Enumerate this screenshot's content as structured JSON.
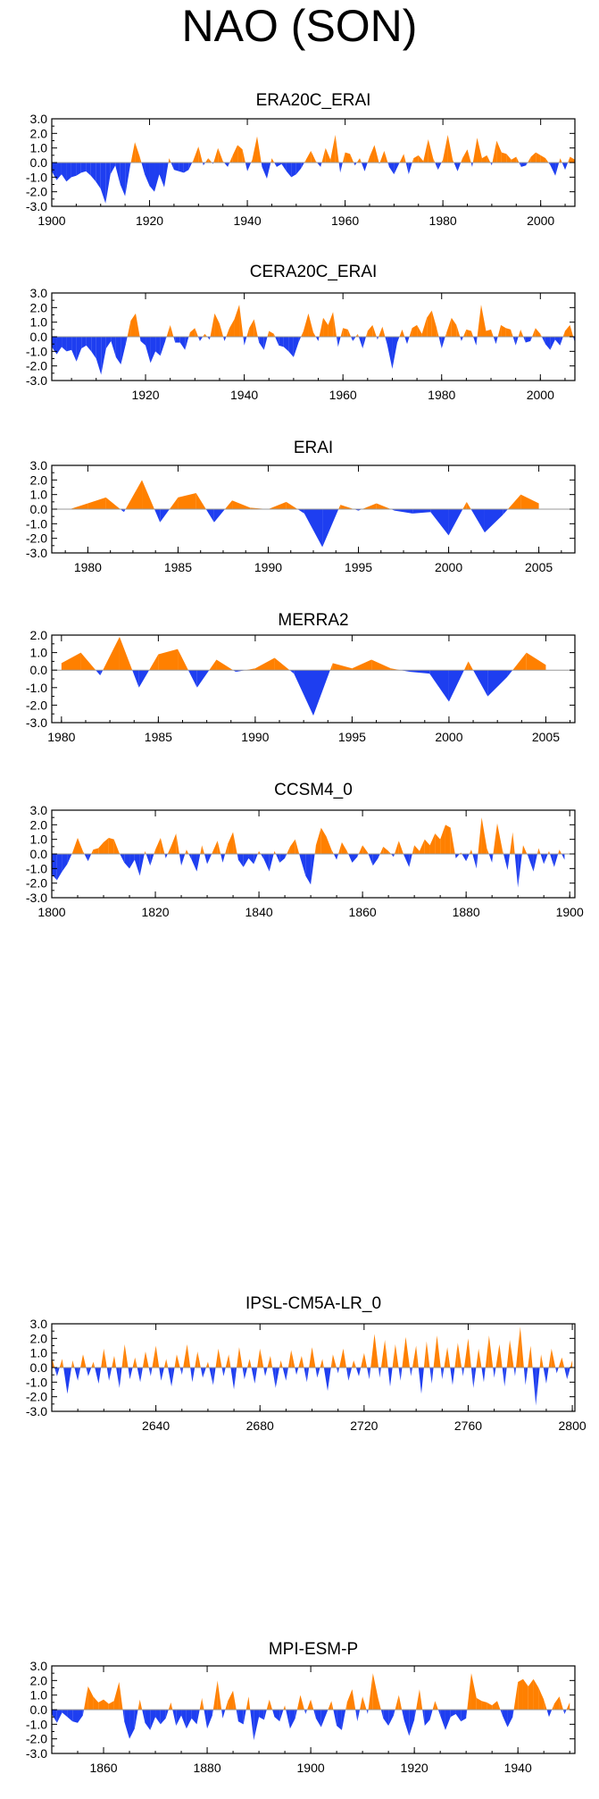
{
  "title": "NAO (SON)",
  "colors": {
    "positive": "#ff8000",
    "negative": "#1e3ef0",
    "axis": "#000000",
    "zero_line": "#999999"
  },
  "chart_data": [
    {
      "type": "area",
      "title": "ERA20C_ERAI",
      "ylim": [
        -3.0,
        3.0
      ],
      "yticks": [
        3.0,
        2.0,
        1.0,
        0.0,
        -1.0,
        -2.0,
        -3.0
      ],
      "ytick_labels": [
        "3.0",
        "2.0",
        "1.0",
        "0.0",
        "-1.0",
        "-2.0",
        "-3.0"
      ],
      "xlim": [
        1900,
        2007
      ],
      "xticks": [
        1900,
        1920,
        1940,
        1960,
        1980,
        2000
      ],
      "x": [
        1900,
        1901,
        1902,
        1903,
        1904,
        1905,
        1906,
        1907,
        1908,
        1909,
        1910,
        1911,
        1912,
        1913,
        1914,
        1915,
        1916,
        1917,
        1918,
        1919,
        1920,
        1921,
        1922,
        1923,
        1924,
        1925,
        1926,
        1927,
        1928,
        1929,
        1930,
        1931,
        1932,
        1933,
        1934,
        1935,
        1936,
        1937,
        1938,
        1939,
        1940,
        1941,
        1942,
        1943,
        1944,
        1945,
        1946,
        1947,
        1948,
        1949,
        1950,
        1951,
        1952,
        1953,
        1954,
        1955,
        1956,
        1957,
        1958,
        1959,
        1960,
        1961,
        1962,
        1963,
        1964,
        1965,
        1966,
        1967,
        1968,
        1969,
        1970,
        1971,
        1972,
        1973,
        1974,
        1975,
        1976,
        1977,
        1978,
        1979,
        1980,
        1981,
        1982,
        1983,
        1984,
        1985,
        1986,
        1987,
        1988,
        1989,
        1990,
        1991,
        1992,
        1993,
        1994,
        1995,
        1996,
        1997,
        1998,
        1999,
        2000,
        2001,
        2002,
        2003,
        2004,
        2005,
        2006,
        2007
      ],
      "values": [
        -0.6,
        -1.2,
        -0.8,
        -1.3,
        -1.0,
        -0.9,
        -0.7,
        -0.6,
        -0.9,
        -1.3,
        -1.8,
        -2.8,
        -0.8,
        -0.2,
        -1.5,
        -2.3,
        -0.3,
        1.4,
        0.4,
        -0.8,
        -1.6,
        -2.0,
        -0.8,
        -1.7,
        0.3,
        -0.5,
        -0.6,
        -0.7,
        -0.5,
        0.2,
        1.1,
        -0.2,
        0.3,
        -0.1,
        1.0,
        0.1,
        -0.3,
        0.5,
        1.2,
        0.9,
        -0.6,
        0.2,
        1.8,
        -0.3,
        -1.1,
        0.3,
        -0.3,
        -0.1,
        -0.6,
        -1.0,
        -0.8,
        -0.4,
        0.2,
        0.8,
        0.1,
        -0.3,
        1.0,
        0.2,
        1.9,
        -0.7,
        0.7,
        0.6,
        -0.2,
        0.3,
        -0.6,
        0.4,
        1.2,
        -0.1,
        0.8,
        -0.3,
        -0.8,
        -0.1,
        0.6,
        -0.8,
        0.3,
        0.5,
        0.1,
        1.6,
        0.3,
        -0.5,
        0.2,
        1.9,
        0.2,
        -0.6,
        0.3,
        0.9,
        -0.3,
        1.7,
        0.3,
        0.5,
        -0.2,
        1.5,
        0.7,
        0.6,
        0.2,
        0.4,
        -0.3,
        -0.2,
        0.4,
        0.7,
        0.5,
        0.3,
        -0.2,
        -0.9,
        0.3,
        -0.5,
        0.4,
        0.2
      ]
    },
    {
      "type": "area",
      "title": "CERA20C_ERAI",
      "ylim": [
        -3.0,
        3.0
      ],
      "yticks": [
        3.0,
        2.0,
        1.0,
        0.0,
        -1.0,
        -2.0,
        -3.0
      ],
      "ytick_labels": [
        "3.0",
        "2.0",
        "1.0",
        "0.0",
        "-1.0",
        "-2.0",
        "-3.0"
      ],
      "xlim": [
        1901,
        2007
      ],
      "xticks": [
        1920,
        1940,
        1960,
        1980,
        2000
      ],
      "x": [
        1901,
        1902,
        1903,
        1904,
        1905,
        1906,
        1907,
        1908,
        1909,
        1910,
        1911,
        1912,
        1913,
        1914,
        1915,
        1916,
        1917,
        1918,
        1919,
        1920,
        1921,
        1922,
        1923,
        1924,
        1925,
        1926,
        1927,
        1928,
        1929,
        1930,
        1931,
        1932,
        1933,
        1934,
        1935,
        1936,
        1937,
        1938,
        1939,
        1940,
        1941,
        1942,
        1943,
        1944,
        1945,
        1946,
        1947,
        1948,
        1949,
        1950,
        1951,
        1952,
        1953,
        1954,
        1955,
        1956,
        1957,
        1958,
        1959,
        1960,
        1961,
        1962,
        1963,
        1964,
        1965,
        1966,
        1967,
        1968,
        1969,
        1970,
        1971,
        1972,
        1973,
        1974,
        1975,
        1976,
        1977,
        1978,
        1979,
        1980,
        1981,
        1982,
        1983,
        1984,
        1985,
        1986,
        1987,
        1988,
        1989,
        1990,
        1991,
        1992,
        1993,
        1994,
        1995,
        1996,
        1997,
        1998,
        1999,
        2000,
        2001,
        2002,
        2003,
        2004,
        2005,
        2006,
        2007
      ],
      "values": [
        -0.7,
        -1.2,
        -0.7,
        -1.0,
        -0.9,
        -1.7,
        -0.8,
        -0.6,
        -1.0,
        -1.5,
        -2.6,
        -0.8,
        -0.3,
        -1.4,
        -1.9,
        -0.5,
        1.1,
        1.6,
        -0.3,
        -0.6,
        -1.8,
        -1.0,
        -1.3,
        -0.3,
        0.8,
        -0.4,
        -0.4,
        -0.9,
        0.3,
        0.6,
        -0.3,
        0.2,
        -0.2,
        1.6,
        0.9,
        -0.3,
        0.6,
        1.2,
        2.2,
        -0.6,
        0.6,
        1.2,
        -0.4,
        -0.9,
        0.4,
        0.2,
        -0.6,
        -0.7,
        -1.0,
        -1.4,
        -0.4,
        0.4,
        1.6,
        0.3,
        -0.3,
        1.3,
        0.8,
        1.7,
        -0.7,
        0.6,
        0.5,
        -0.3,
        0.2,
        -0.8,
        0.4,
        0.8,
        -0.2,
        0.7,
        -0.6,
        -2.2,
        -0.4,
        0.5,
        -0.5,
        0.6,
        0.8,
        0.2,
        1.3,
        1.8,
        0.6,
        -0.8,
        0.3,
        1.3,
        0.8,
        -0.3,
        0.5,
        0.4,
        -0.6,
        2.2,
        0.4,
        0.5,
        -0.5,
        0.8,
        0.6,
        0.5,
        -0.6,
        0.5,
        -0.4,
        -0.3,
        0.6,
        0.2,
        -0.5,
        -0.9,
        -0.2,
        -0.6,
        0.4,
        0.8,
        -0.4
      ]
    },
    {
      "type": "area",
      "title": "ERAI",
      "ylim": [
        -3.0,
        3.0
      ],
      "yticks": [
        3.0,
        2.0,
        1.0,
        0.0,
        -1.0,
        -2.0,
        -3.0
      ],
      "ytick_labels": [
        "3.0",
        "2.0",
        "1.0",
        "0.0",
        "-1.0",
        "-2.0",
        "-3.0"
      ],
      "xlim": [
        1978,
        2007
      ],
      "xticks": [
        1980,
        1985,
        1990,
        1995,
        2000,
        2005
      ],
      "x": [
        1979,
        1980,
        1981,
        1982,
        1983,
        1984,
        1985,
        1986,
        1987,
        1988,
        1989,
        1990,
        1991,
        1992,
        1993,
        1994,
        1995,
        1996,
        1997,
        1998,
        1999,
        2000,
        2001,
        2002,
        2003,
        2004,
        2005
      ],
      "values": [
        0.0,
        0.4,
        0.8,
        -0.2,
        2.0,
        -0.9,
        0.8,
        1.1,
        -0.9,
        0.6,
        0.1,
        0.0,
        0.5,
        -0.3,
        -2.6,
        0.3,
        -0.1,
        0.4,
        -0.1,
        -0.3,
        -0.2,
        -1.8,
        0.5,
        -1.6,
        -0.4,
        1.0,
        0.4
      ]
    },
    {
      "type": "area",
      "title": "MERRA2",
      "ylim": [
        -3.0,
        2.0
      ],
      "yticks": [
        2.0,
        1.0,
        0.0,
        -1.0,
        -2.0,
        -3.0
      ],
      "ytick_labels": [
        "2.0",
        "1.0",
        "0.0",
        "-1.0",
        "-2.0",
        "-3.0"
      ],
      "xlim": [
        1979.5,
        2006.5
      ],
      "xticks": [
        1980,
        1985,
        1990,
        1995,
        2000,
        2005
      ],
      "x": [
        1980,
        1981,
        1982,
        1983,
        1984,
        1985,
        1986,
        1987,
        1988,
        1989,
        1990,
        1991,
        1992,
        1993,
        1994,
        1995,
        1996,
        1997,
        1998,
        1999,
        2000,
        2001,
        2002,
        2003,
        2004,
        2005
      ],
      "values": [
        0.4,
        1.0,
        -0.3,
        1.9,
        -1.0,
        0.9,
        1.2,
        -1.0,
        0.6,
        -0.1,
        0.1,
        0.7,
        -0.2,
        -2.6,
        0.4,
        0.1,
        0.6,
        0.1,
        -0.1,
        -0.2,
        -1.8,
        0.5,
        -1.5,
        -0.4,
        1.0,
        0.3
      ]
    },
    {
      "type": "area",
      "title": "CCSM4_0",
      "ylim": [
        -3.0,
        3.0
      ],
      "yticks": [
        3.0,
        2.0,
        1.0,
        0.0,
        -1.0,
        -2.0,
        -3.0
      ],
      "ytick_labels": [
        "3.0",
        "2.0",
        "1.0",
        "0.0",
        "-1.0",
        "-2.0",
        "-3.0"
      ],
      "xlim": [
        1800,
        1901
      ],
      "xticks": [
        1800,
        1820,
        1840,
        1860,
        1880,
        1900
      ],
      "x": [
        1800,
        1801,
        1802,
        1803,
        1804,
        1805,
        1806,
        1807,
        1808,
        1809,
        1810,
        1811,
        1812,
        1813,
        1814,
        1815,
        1816,
        1817,
        1818,
        1819,
        1820,
        1821,
        1822,
        1823,
        1824,
        1825,
        1826,
        1827,
        1828,
        1829,
        1830,
        1831,
        1832,
        1833,
        1834,
        1835,
        1836,
        1837,
        1838,
        1839,
        1840,
        1841,
        1842,
        1843,
        1844,
        1845,
        1846,
        1847,
        1848,
        1849,
        1850,
        1851,
        1852,
        1853,
        1854,
        1855,
        1856,
        1857,
        1858,
        1859,
        1860,
        1861,
        1862,
        1863,
        1864,
        1865,
        1866,
        1867,
        1868,
        1869,
        1870,
        1871,
        1872,
        1873,
        1874,
        1875,
        1876,
        1877,
        1878,
        1879,
        1880,
        1881,
        1882,
        1883,
        1884,
        1885,
        1886,
        1887,
        1888,
        1889,
        1890,
        1891,
        1892,
        1893,
        1894,
        1895,
        1896,
        1897,
        1898,
        1899
      ],
      "values": [
        -1.4,
        -1.8,
        -1.2,
        -0.7,
        0.1,
        1.1,
        0.2,
        -0.5,
        0.3,
        0.4,
        0.8,
        1.1,
        1.0,
        0.1,
        -0.6,
        -1.0,
        -0.4,
        -1.5,
        0.2,
        -0.8,
        0.3,
        1.1,
        -0.3,
        0.5,
        1.4,
        -0.8,
        0.3,
        -0.4,
        -1.2,
        0.6,
        -0.7,
        0.1,
        0.9,
        -0.6,
        0.7,
        1.5,
        -0.4,
        -0.9,
        -0.3,
        -0.7,
        0.2,
        -0.4,
        -1.2,
        0.2,
        -0.6,
        -0.3,
        0.5,
        1.0,
        -0.3,
        -1.5,
        -2.1,
        0.6,
        1.8,
        1.2,
        0.3,
        -0.4,
        0.8,
        0.2,
        -0.6,
        -0.2,
        0.6,
        0.1,
        -0.8,
        -0.3,
        0.5,
        0.2,
        -0.2,
        0.9,
        -0.1,
        -0.9,
        0.6,
        0.2,
        1.0,
        0.6,
        1.4,
        1.0,
        2.0,
        1.8,
        -0.3,
        0.1,
        -0.5,
        0.3,
        -1.0,
        2.5,
        0.4,
        -0.6,
        2.1,
        0.3,
        -1.1,
        1.5,
        -2.3,
        0.6,
        -0.2,
        -1.2,
        0.4,
        -0.7,
        0.2,
        -0.9,
        0.3,
        -0.4
      ]
    },
    {
      "type": "area",
      "title": "IPSL-CM5A-LR_0",
      "ylim": [
        -3.0,
        3.0
      ],
      "yticks": [
        3.0,
        2.0,
        1.0,
        0.0,
        -1.0,
        -2.0,
        -3.0
      ],
      "ytick_labels": [
        "3.0",
        "2.0",
        "1.0",
        "0.0",
        "-1.0",
        "-2.0",
        "-3.0"
      ],
      "xlim": [
        2600,
        2801
      ],
      "xticks": [
        2640,
        2680,
        2720,
        2760,
        2800
      ],
      "x": [
        2600,
        2602,
        2604,
        2606,
        2608,
        2610,
        2612,
        2614,
        2616,
        2618,
        2620,
        2622,
        2624,
        2626,
        2628,
        2630,
        2632,
        2634,
        2636,
        2638,
        2640,
        2642,
        2644,
        2646,
        2648,
        2650,
        2652,
        2654,
        2656,
        2658,
        2660,
        2662,
        2664,
        2666,
        2668,
        2670,
        2672,
        2674,
        2676,
        2678,
        2680,
        2682,
        2684,
        2686,
        2688,
        2690,
        2692,
        2694,
        2696,
        2698,
        2700,
        2702,
        2704,
        2706,
        2708,
        2710,
        2712,
        2714,
        2716,
        2718,
        2720,
        2722,
        2724,
        2726,
        2728,
        2730,
        2732,
        2734,
        2736,
        2738,
        2740,
        2742,
        2744,
        2746,
        2748,
        2750,
        2752,
        2754,
        2756,
        2758,
        2760,
        2762,
        2764,
        2766,
        2768,
        2770,
        2772,
        2774,
        2776,
        2778,
        2780,
        2782,
        2784,
        2786,
        2788,
        2790,
        2792,
        2794,
        2796,
        2798,
        2800
      ],
      "values": [
        0.7,
        -0.6,
        0.6,
        -1.8,
        0.5,
        -0.9,
        0.9,
        -0.6,
        0.4,
        -1.1,
        1.3,
        -0.9,
        0.8,
        -1.4,
        1.6,
        -0.8,
        0.7,
        -1.0,
        1.1,
        -0.6,
        1.5,
        -0.9,
        0.6,
        -1.3,
        0.9,
        -0.5,
        1.6,
        -1.0,
        1.1,
        -0.7,
        0.4,
        -1.2,
        1.3,
        -0.6,
        0.9,
        -1.5,
        1.4,
        -0.8,
        0.6,
        -1.1,
        1.3,
        -0.6,
        0.8,
        -1.4,
        0.5,
        -0.9,
        1.2,
        -0.5,
        0.8,
        -1.0,
        1.4,
        -0.7,
        0.6,
        -1.6,
        0.9,
        -0.4,
        1.3,
        -0.9,
        0.5,
        -0.6,
        1.0,
        -0.8,
        2.3,
        -0.7,
        1.9,
        -1.3,
        1.6,
        -0.9,
        2.1,
        -0.6,
        1.5,
        -1.8,
        1.8,
        -1.1,
        2.2,
        -0.8,
        1.4,
        -1.2,
        1.7,
        -0.6,
        2.0,
        -1.4,
        1.3,
        -1.0,
        2.2,
        -0.7,
        1.6,
        -1.3,
        1.9,
        -0.6,
        2.8,
        -1.2,
        1.5,
        -2.6,
        0.9,
        -1.1,
        1.3,
        -0.4,
        0.7,
        -0.8,
        0.5
      ]
    },
    {
      "type": "area",
      "title": "MPI-ESM-P",
      "ylim": [
        -3.0,
        3.0
      ],
      "yticks": [
        3.0,
        2.0,
        1.0,
        0.0,
        -1.0,
        -2.0,
        -3.0
      ],
      "ytick_labels": [
        "3.0",
        "2.0",
        "1.0",
        "0.0",
        "-1.0",
        "-2.0",
        "-3.0"
      ],
      "xlim": [
        1850,
        1951
      ],
      "xticks": [
        1860,
        1880,
        1900,
        1920,
        1940
      ],
      "x": [
        1850,
        1851,
        1852,
        1853,
        1854,
        1855,
        1856,
        1857,
        1858,
        1859,
        1860,
        1861,
        1862,
        1863,
        1864,
        1865,
        1866,
        1867,
        1868,
        1869,
        1870,
        1871,
        1872,
        1873,
        1874,
        1875,
        1876,
        1877,
        1878,
        1879,
        1880,
        1881,
        1882,
        1883,
        1884,
        1885,
        1886,
        1887,
        1888,
        1889,
        1890,
        1891,
        1892,
        1893,
        1894,
        1895,
        1896,
        1897,
        1898,
        1899,
        1900,
        1901,
        1902,
        1903,
        1904,
        1905,
        1906,
        1907,
        1908,
        1909,
        1910,
        1911,
        1912,
        1913,
        1914,
        1915,
        1916,
        1917,
        1918,
        1919,
        1920,
        1921,
        1922,
        1923,
        1924,
        1925,
        1926,
        1927,
        1928,
        1929,
        1930,
        1931,
        1932,
        1933,
        1934,
        1935,
        1936,
        1937,
        1938,
        1939,
        1940,
        1941,
        1942,
        1943,
        1944,
        1945,
        1946,
        1947,
        1948,
        1949,
        1950
      ],
      "values": [
        -0.3,
        -0.9,
        -0.2,
        -0.5,
        -0.8,
        -0.9,
        -0.4,
        1.6,
        0.9,
        0.5,
        0.7,
        0.4,
        0.6,
        1.9,
        -0.8,
        -2.0,
        -1.3,
        0.7,
        -0.9,
        -1.4,
        -0.5,
        -1.0,
        -0.6,
        0.5,
        -1.1,
        -0.4,
        -1.3,
        -0.6,
        -1.0,
        0.8,
        -1.3,
        -0.4,
        2.0,
        -0.6,
        0.6,
        1.3,
        -0.8,
        -1.0,
        0.9,
        -2.1,
        -0.5,
        -0.7,
        0.7,
        -0.5,
        -0.8,
        0.3,
        -1.3,
        -0.6,
        1.0,
        -0.3,
        0.7,
        -0.6,
        -1.2,
        -0.3,
        0.6,
        -1.1,
        -1.4,
        0.5,
        1.4,
        -0.8,
        0.9,
        -0.3,
        2.5,
        0.8,
        -0.6,
        -1.1,
        -0.4,
        1.0,
        -0.7,
        -1.8,
        -0.7,
        1.4,
        -1.1,
        -0.7,
        0.6,
        -0.4,
        -1.4,
        -0.5,
        -0.3,
        -0.8,
        -0.6,
        2.5,
        0.8,
        0.6,
        0.5,
        0.3,
        0.6,
        -0.4,
        -1.2,
        -0.5,
        1.9,
        2.1,
        1.6,
        2.1,
        1.5,
        0.7,
        -0.5,
        0.4,
        0.9,
        -0.3,
        0.5
      ]
    }
  ]
}
